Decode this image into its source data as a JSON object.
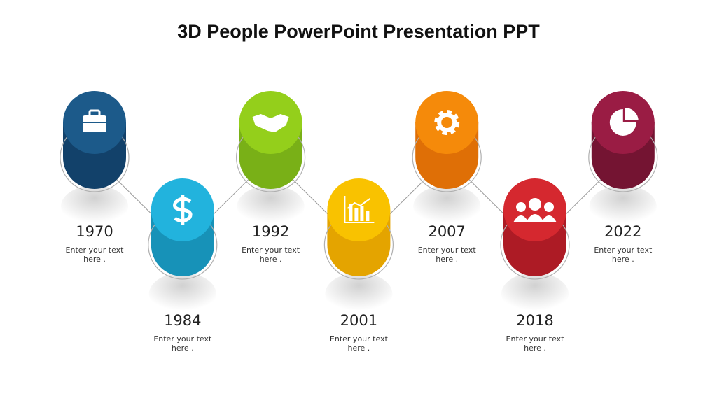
{
  "title": "3D People PowerPoint Presentation PPT",
  "items": [
    {
      "year": "1970",
      "text": "Enter your text here ."
    },
    {
      "year": "1984",
      "text": "Enter your text here ."
    },
    {
      "year": "1992",
      "text": "Enter your text here ."
    },
    {
      "year": "2001",
      "text": "Enter your text here ."
    },
    {
      "year": "2007",
      "text": "Enter your text here ."
    },
    {
      "year": "2018",
      "text": "Enter your text here ."
    },
    {
      "year": "2022",
      "text": "Enter your text here ."
    }
  ]
}
